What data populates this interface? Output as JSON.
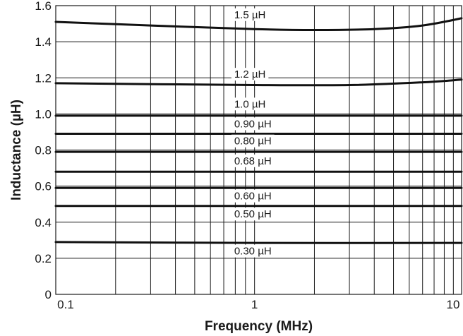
{
  "chart_data": {
    "type": "line",
    "xlabel": "Frequency (MHz)",
    "ylabel": "Inductance (µH)",
    "xscale": "log",
    "xlim": [
      0.1,
      11
    ],
    "ylim": [
      0,
      1.6
    ],
    "x_ticks": [
      {
        "value": 0.1,
        "label": "0.1"
      },
      {
        "value": 1,
        "label": "1"
      },
      {
        "value": 10,
        "label": "10"
      }
    ],
    "y_ticks": [
      {
        "value": 0,
        "label": "0"
      },
      {
        "value": 0.2,
        "label": "0.2"
      },
      {
        "value": 0.4,
        "label": "0.4"
      },
      {
        "value": 0.6,
        "label": "0.6"
      },
      {
        "value": 0.8,
        "label": "0.8"
      },
      {
        "value": 1.0,
        "label": "1.0"
      },
      {
        "value": 1.2,
        "label": "1.2"
      },
      {
        "value": 1.4,
        "label": "1.4"
      },
      {
        "value": 1.6,
        "label": "1.6"
      }
    ],
    "grid": true,
    "series": [
      {
        "name": "1.5 µH",
        "label_y": 1.55,
        "points": [
          [
            0.1,
            1.51
          ],
          [
            0.3,
            1.49
          ],
          [
            1,
            1.47
          ],
          [
            2,
            1.465
          ],
          [
            4,
            1.47
          ],
          [
            7,
            1.49
          ],
          [
            11,
            1.53
          ]
        ]
      },
      {
        "name": "1.2 µH",
        "label_y": 1.22,
        "points": [
          [
            0.1,
            1.17
          ],
          [
            1,
            1.16
          ],
          [
            3,
            1.16
          ],
          [
            7,
            1.175
          ],
          [
            11,
            1.19
          ]
        ]
      },
      {
        "name": "1.0 µH",
        "label_y": 1.055,
        "points": [
          [
            0.1,
            0.99
          ],
          [
            1,
            0.99
          ],
          [
            11,
            0.99
          ]
        ]
      },
      {
        "name": "0.90 µH",
        "label_y": 0.945,
        "points": [
          [
            0.1,
            0.89
          ],
          [
            1,
            0.89
          ],
          [
            11,
            0.89
          ]
        ]
      },
      {
        "name": "0.80 µH",
        "label_y": 0.85,
        "points": [
          [
            0.1,
            0.79
          ],
          [
            1,
            0.79
          ],
          [
            11,
            0.79
          ]
        ]
      },
      {
        "name": "0.68 µH",
        "label_y": 0.74,
        "points": [
          [
            0.1,
            0.68
          ],
          [
            1,
            0.68
          ],
          [
            11,
            0.68
          ]
        ]
      },
      {
        "name": "0.60 µH",
        "label_y": 0.545,
        "points": [
          [
            0.1,
            0.59
          ],
          [
            1,
            0.59
          ],
          [
            11,
            0.59
          ]
        ]
      },
      {
        "name": "0.50 µH",
        "label_y": 0.445,
        "points": [
          [
            0.1,
            0.49
          ],
          [
            1,
            0.49
          ],
          [
            11,
            0.49
          ]
        ]
      },
      {
        "name": "0.30 µH",
        "label_y": 0.24,
        "points": [
          [
            0.1,
            0.29
          ],
          [
            1,
            0.285
          ],
          [
            11,
            0.285
          ]
        ]
      }
    ]
  }
}
